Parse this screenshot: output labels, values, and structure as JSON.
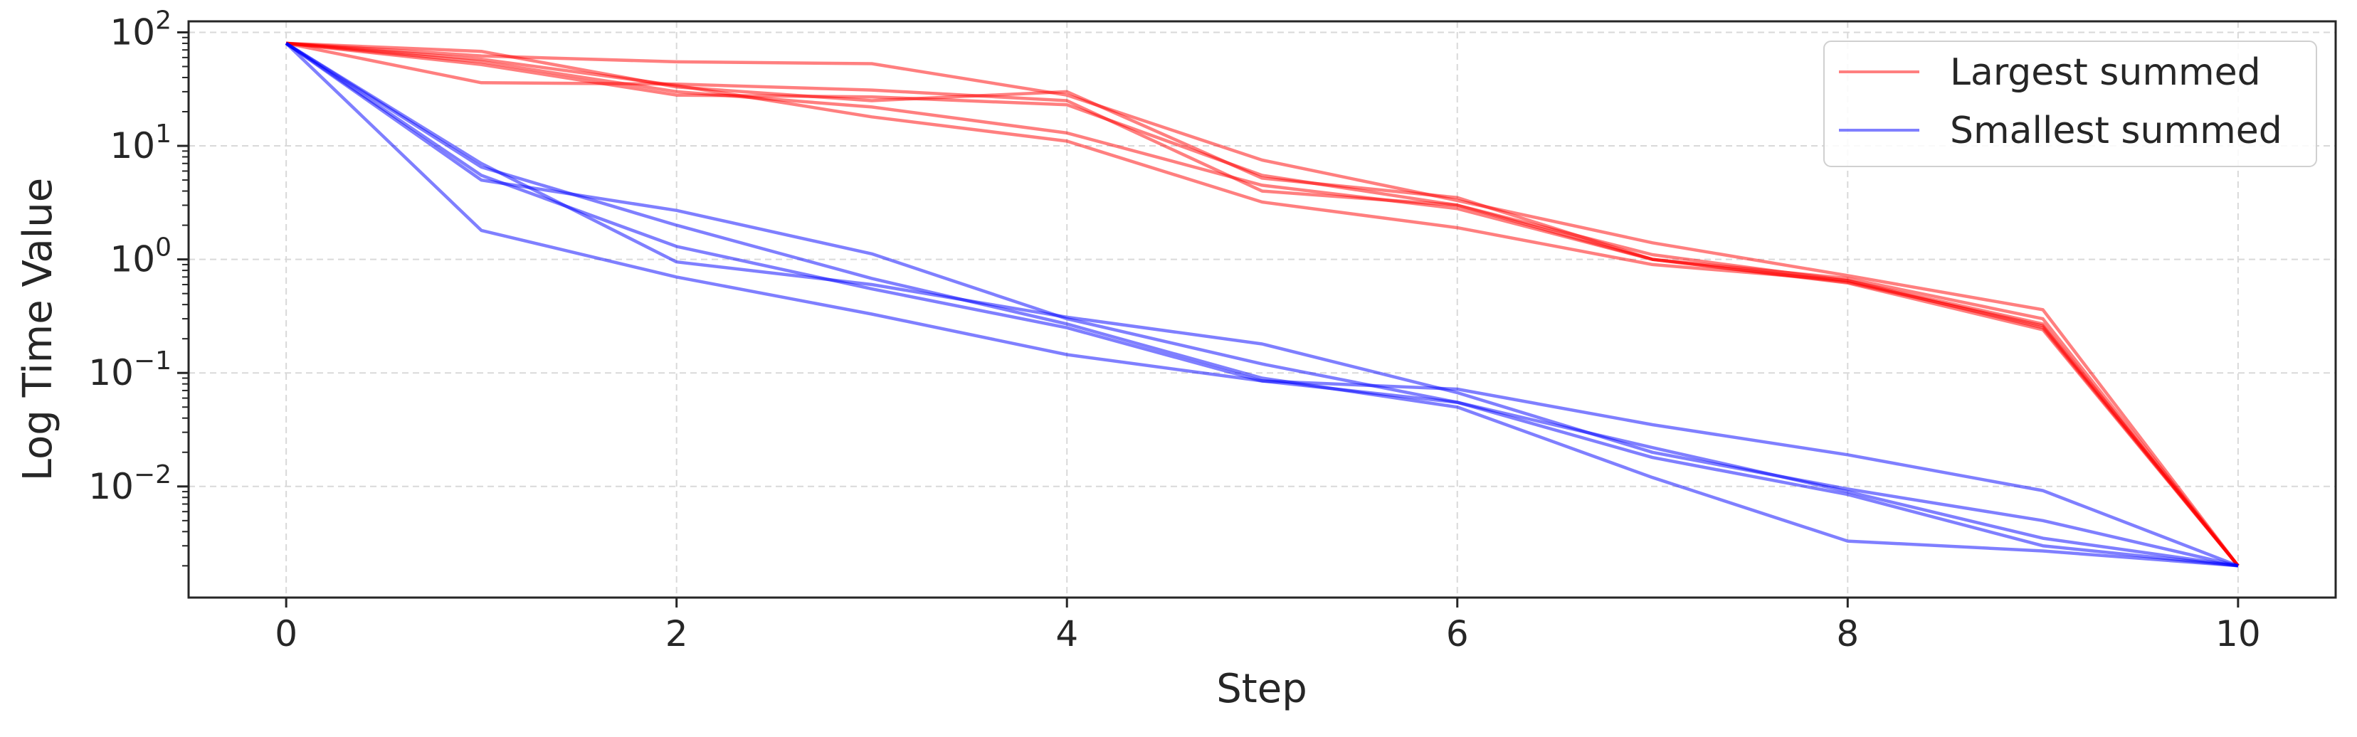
{
  "chart_data": {
    "type": "line",
    "xlabel": "Step",
    "ylabel": "Log Time Value",
    "yscale": "log",
    "xlim": [
      -0.5,
      10.5
    ],
    "ylim": [
      0.00105,
      125
    ],
    "grid": true,
    "legend_position": "top-right",
    "x_ticks": [
      0,
      2,
      4,
      6,
      8,
      10
    ],
    "y_ticks": [
      {
        "value": 0.01,
        "base": "10",
        "exp": "−2"
      },
      {
        "value": 0.1,
        "base": "10",
        "exp": "−1"
      },
      {
        "value": 1,
        "base": "10",
        "exp": "0"
      },
      {
        "value": 10,
        "base": "10",
        "exp": "1"
      },
      {
        "value": 100,
        "base": "10",
        "exp": "2"
      }
    ],
    "x": [
      0,
      1,
      2,
      3,
      4,
      5,
      6,
      7,
      8,
      9,
      10
    ],
    "groups": [
      {
        "name": "Largest summed",
        "color": "#ff0000",
        "lines": [
          [
            80,
            68,
            33,
            25,
            30,
            5.2,
            3.5,
            1.0,
            0.68,
            0.3,
            0.002
          ],
          [
            80,
            62,
            55,
            53,
            28,
            7.5,
            3.3,
            1.4,
            0.72,
            0.36,
            0.002
          ],
          [
            80,
            36,
            35,
            31,
            25,
            4.0,
            3.0,
            1.0,
            0.63,
            0.26,
            0.002
          ],
          [
            80,
            52,
            28,
            27,
            23,
            5.5,
            3.0,
            1.1,
            0.65,
            0.25,
            0.002
          ],
          [
            80,
            58,
            34,
            18,
            11,
            3.2,
            1.9,
            0.9,
            0.65,
            0.27,
            0.002
          ],
          [
            80,
            55,
            30,
            22,
            13,
            4.5,
            2.8,
            1.0,
            0.62,
            0.24,
            0.002
          ]
        ]
      },
      {
        "name": "Smallest summed",
        "color": "#0000ff",
        "lines": [
          [
            80,
            1.8,
            0.7,
            0.33,
            0.145,
            0.085,
            0.072,
            0.035,
            0.019,
            0.0092,
            0.002
          ],
          [
            80,
            5.0,
            2.7,
            1.12,
            0.3,
            0.12,
            0.055,
            0.022,
            0.009,
            0.0035,
            0.002
          ],
          [
            80,
            6.5,
            2.0,
            0.68,
            0.27,
            0.09,
            0.05,
            0.012,
            0.0033,
            0.0027,
            0.002
          ],
          [
            80,
            7.0,
            0.95,
            0.6,
            0.31,
            0.18,
            0.067,
            0.02,
            0.0095,
            0.005,
            0.002
          ],
          [
            80,
            5.5,
            1.3,
            0.55,
            0.25,
            0.085,
            0.055,
            0.018,
            0.0085,
            0.003,
            0.002
          ]
        ]
      }
    ]
  }
}
